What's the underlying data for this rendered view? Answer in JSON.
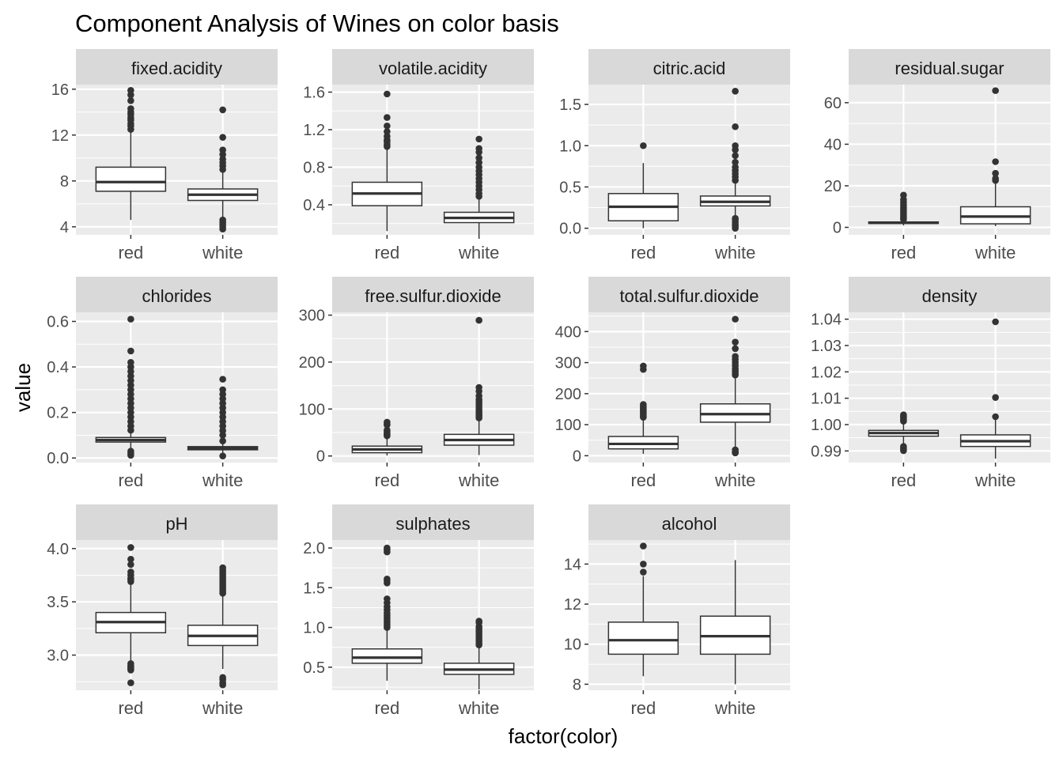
{
  "chart_data": {
    "type": "box",
    "title": "Component Analysis of Wines on color basis",
    "xlabel": "factor(color)",
    "ylabel": "value",
    "categories": [
      "red",
      "white"
    ],
    "grid": true,
    "panels": [
      {
        "name": "fixed.acidity",
        "ylim": [
          3.3,
          16.4
        ],
        "yticks": [
          4,
          8,
          12,
          16
        ],
        "ytick_labels": [
          "4",
          "8",
          "12",
          "16"
        ],
        "boxes": [
          {
            "category": "red",
            "whisker_low": 4.6,
            "q1": 7.1,
            "median": 7.9,
            "q3": 9.2,
            "whisker_high": 12.3,
            "outliers": [
              12.5,
              12.8,
              13.0,
              13.3,
              13.5,
              13.8,
              14.0,
              14.3,
              15.0,
              15.5,
              15.9
            ]
          },
          {
            "category": "white",
            "whisker_low": 4.8,
            "q1": 6.3,
            "median": 6.8,
            "q3": 7.3,
            "whisker_high": 8.8,
            "outliers": [
              3.8,
              4.0,
              4.2,
              4.4,
              4.6,
              9.0,
              9.3,
              9.6,
              9.9,
              10.3,
              10.7,
              11.8,
              14.2
            ]
          }
        ]
      },
      {
        "name": "volatile.acidity",
        "ylim": [
          0.08,
          1.68
        ],
        "yticks": [
          0.4,
          0.8,
          1.2,
          1.6
        ],
        "ytick_labels": [
          "0.4",
          "0.8",
          "1.2",
          "1.6"
        ],
        "boxes": [
          {
            "category": "red",
            "whisker_low": 0.12,
            "q1": 0.39,
            "median": 0.52,
            "q3": 0.64,
            "whisker_high": 1.01,
            "outliers": [
              1.02,
              1.04,
              1.07,
              1.09,
              1.13,
              1.18,
              1.24,
              1.33,
              1.58
            ]
          },
          {
            "category": "white",
            "whisker_low": 0.08,
            "q1": 0.21,
            "median": 0.26,
            "q3": 0.32,
            "whisker_high": 0.48,
            "outliers": [
              0.49,
              0.52,
              0.56,
              0.6,
              0.64,
              0.68,
              0.72,
              0.76,
              0.8,
              0.85,
              0.9,
              0.96,
              1.0,
              1.1
            ]
          }
        ]
      },
      {
        "name": "citric.acid",
        "ylim": [
          -0.08,
          1.74
        ],
        "yticks": [
          0.0,
          0.5,
          1.0,
          1.5
        ],
        "ytick_labels": [
          "0.0",
          "0.5",
          "1.0",
          "1.5"
        ],
        "boxes": [
          {
            "category": "red",
            "whisker_low": 0.0,
            "q1": 0.09,
            "median": 0.26,
            "q3": 0.42,
            "whisker_high": 0.79,
            "outliers": [
              1.0
            ]
          },
          {
            "category": "white",
            "whisker_low": 0.13,
            "q1": 0.27,
            "median": 0.32,
            "q3": 0.39,
            "whisker_high": 0.56,
            "outliers": [
              0.0,
              0.02,
              0.04,
              0.07,
              0.1,
              0.12,
              0.58,
              0.62,
              0.66,
              0.7,
              0.74,
              0.8,
              0.88,
              0.95,
              1.0,
              1.23,
              1.66
            ]
          }
        ]
      },
      {
        "name": "residual.sugar",
        "ylim": [
          -3.6,
          68.7
        ],
        "yticks": [
          0,
          20,
          40,
          60
        ],
        "ytick_labels": [
          "0",
          "20",
          "40",
          "60"
        ],
        "boxes": [
          {
            "category": "red",
            "whisker_low": 0.9,
            "q1": 1.9,
            "median": 2.2,
            "q3": 2.6,
            "whisker_high": 3.6,
            "outliers": [
              3.8,
              4.5,
              5.5,
              6.5,
              7.5,
              8.5,
              9.5,
              10.7,
              12.0,
              13.4,
              15.5
            ]
          },
          {
            "category": "white",
            "whisker_low": 0.6,
            "q1": 1.7,
            "median": 5.2,
            "q3": 9.9,
            "whisker_high": 22.0,
            "outliers": [
              22.6,
              23.5,
              26.0,
              31.6,
              65.8
            ]
          }
        ]
      },
      {
        "name": "chlorides",
        "ylim": [
          -0.02,
          0.64
        ],
        "yticks": [
          0.0,
          0.2,
          0.4,
          0.6
        ],
        "ytick_labels": [
          "0.0",
          "0.2",
          "0.4",
          "0.6"
        ],
        "boxes": [
          {
            "category": "red",
            "whisker_low": 0.04,
            "q1": 0.07,
            "median": 0.079,
            "q3": 0.09,
            "whisker_high": 0.119,
            "outliers": [
              0.012,
              0.02,
              0.03,
              0.122,
              0.14,
              0.16,
              0.18,
              0.2,
              0.22,
              0.24,
              0.26,
              0.28,
              0.3,
              0.32,
              0.34,
              0.36,
              0.38,
              0.4,
              0.42,
              0.47,
              0.61
            ]
          },
          {
            "category": "white",
            "whisker_low": 0.016,
            "q1": 0.036,
            "median": 0.043,
            "q3": 0.05,
            "whisker_high": 0.07,
            "outliers": [
              0.009,
              0.075,
              0.1,
              0.12,
              0.14,
              0.16,
              0.18,
              0.2,
              0.22,
              0.24,
              0.26,
              0.28,
              0.3,
              0.346
            ]
          }
        ]
      },
      {
        "name": "free.sulfur.dioxide",
        "ylim": [
          -14,
          306
        ],
        "yticks": [
          0,
          100,
          200,
          300
        ],
        "ytick_labels": [
          "0",
          "100",
          "200",
          "300"
        ],
        "boxes": [
          {
            "category": "red",
            "whisker_low": 1,
            "q1": 7,
            "median": 14,
            "q3": 21,
            "whisker_high": 42,
            "outliers": [
              43,
              45,
              48,
              51,
              55,
              66,
              68,
              72
            ]
          },
          {
            "category": "white",
            "whisker_low": 2,
            "q1": 23,
            "median": 34,
            "q3": 46,
            "whisker_high": 80,
            "outliers": [
              81,
              85,
              88,
              92,
              96,
              100,
              105,
              110,
              115,
              120,
              128,
              138,
              146,
              289
            ]
          }
        ]
      },
      {
        "name": "total.sulfur.dioxide",
        "ylim": [
          -22,
          462
        ],
        "yticks": [
          0,
          100,
          200,
          300,
          400
        ],
        "ytick_labels": [
          "0",
          "100",
          "200",
          "300",
          "400"
        ],
        "boxes": [
          {
            "category": "red",
            "whisker_low": 6,
            "q1": 22,
            "median": 38,
            "q3": 62,
            "whisker_high": 122,
            "outliers": [
              124,
              128,
              133,
              138,
              143,
              147,
              151,
              155,
              160,
              165,
              278,
              289
            ]
          },
          {
            "category": "white",
            "whisker_low": 18,
            "q1": 108,
            "median": 134,
            "q3": 167,
            "whisker_high": 256,
            "outliers": [
              9,
              10,
              12,
              19,
              260,
              265,
              272,
              280,
              290,
              300,
              310,
              320,
              345,
              366,
              440
            ]
          }
        ]
      },
      {
        "name": "density",
        "ylim": [
          0.9856,
          1.0426
        ],
        "yticks": [
          0.99,
          1.0,
          1.01,
          1.02,
          1.03,
          1.04
        ],
        "ytick_labels": [
          "0.99",
          "1.00",
          "1.01",
          "1.02",
          "1.03",
          "1.04"
        ],
        "boxes": [
          {
            "category": "red",
            "whisker_low": 0.9922,
            "q1": 0.9956,
            "median": 0.9968,
            "q3": 0.9978,
            "whisker_high": 1.001,
            "outliers": [
              0.9901,
              0.9907,
              0.9912,
              0.9917,
              1.0013,
              1.0018,
              1.0024,
              1.0029,
              1.0032,
              1.0037
            ]
          },
          {
            "category": "white",
            "whisker_low": 0.9871,
            "q1": 0.9917,
            "median": 0.9937,
            "q3": 0.9961,
            "whisker_high": 1.0024,
            "outliers": [
              1.003,
              1.0103,
              1.039
            ]
          }
        ]
      },
      {
        "name": "pH",
        "ylim": [
          2.67,
          4.08
        ],
        "yticks": [
          3.0,
          3.5,
          4.0
        ],
        "ytick_labels": [
          "3.0",
          "3.5",
          "4.0"
        ],
        "boxes": [
          {
            "category": "red",
            "whisker_low": 2.94,
            "q1": 3.21,
            "median": 3.31,
            "q3": 3.4,
            "whisker_high": 3.68,
            "outliers": [
              2.74,
              2.86,
              2.87,
              2.88,
              2.89,
              2.9,
              2.92,
              3.69,
              3.71,
              3.72,
              3.75,
              3.78,
              3.85,
              3.9,
              4.01
            ]
          },
          {
            "category": "white",
            "whisker_low": 2.87,
            "q1": 3.09,
            "median": 3.18,
            "q3": 3.28,
            "whisker_high": 3.57,
            "outliers": [
              2.72,
              2.74,
              2.77,
              2.79,
              3.58,
              3.6,
              3.62,
              3.64,
              3.66,
              3.68,
              3.7,
              3.72,
              3.74,
              3.76,
              3.78,
              3.8,
              3.82
            ]
          }
        ]
      },
      {
        "name": "sulphates",
        "ylim": [
          0.21,
          2.1
        ],
        "yticks": [
          0.5,
          1.0,
          1.5,
          2.0
        ],
        "ytick_labels": [
          "0.5",
          "1.0",
          "1.5",
          "2.0"
        ],
        "boxes": [
          {
            "category": "red",
            "whisker_low": 0.33,
            "q1": 0.55,
            "median": 0.62,
            "q3": 0.73,
            "whisker_high": 0.99,
            "outliers": [
              1.0,
              1.03,
              1.06,
              1.09,
              1.12,
              1.15,
              1.18,
              1.22,
              1.26,
              1.31,
              1.36,
              1.56,
              1.59,
              1.61,
              1.95,
              1.98,
              2.0
            ]
          },
          {
            "category": "white",
            "whisker_low": 0.22,
            "q1": 0.41,
            "median": 0.47,
            "q3": 0.55,
            "whisker_high": 0.76,
            "outliers": [
              0.78,
              0.8,
              0.83,
              0.86,
              0.89,
              0.92,
              0.95,
              0.98,
              1.01,
              1.06,
              1.08
            ]
          }
        ]
      },
      {
        "name": "alcohol",
        "ylim": [
          7.7,
          15.2
        ],
        "yticks": [
          8,
          10,
          12,
          14
        ],
        "ytick_labels": [
          "8",
          "10",
          "12",
          "14"
        ],
        "boxes": [
          {
            "category": "red",
            "whisker_low": 8.4,
            "q1": 9.5,
            "median": 10.2,
            "q3": 11.1,
            "whisker_high": 13.4,
            "outliers": [
              13.6,
              14.0,
              14.9
            ]
          },
          {
            "category": "white",
            "whisker_low": 8.0,
            "q1": 9.5,
            "median": 10.4,
            "q3": 11.4,
            "whisker_high": 14.2,
            "outliers": []
          }
        ]
      }
    ]
  }
}
